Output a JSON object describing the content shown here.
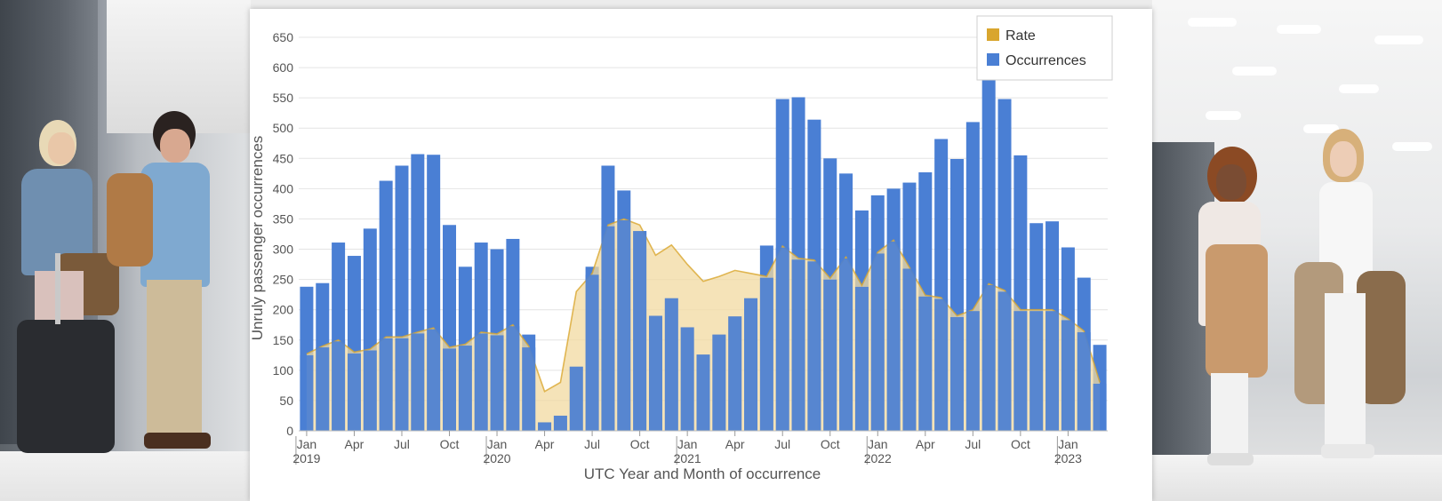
{
  "chart_data": {
    "type": "bar",
    "title": "",
    "xlabel": "UTC Year and Month of occurrence",
    "ylabel": "Unruly passenger occurrences",
    "ylim": [
      0,
      650
    ],
    "yticks": [
      0,
      50,
      100,
      150,
      200,
      250,
      300,
      350,
      400,
      450,
      500,
      550,
      600,
      650
    ],
    "grid": "horizontal",
    "legend_position": "top-right",
    "x_tick_labels": [
      {
        "index": 0,
        "month": "Jan",
        "year": "2019"
      },
      {
        "index": 3,
        "month": "Apr",
        "year": ""
      },
      {
        "index": 6,
        "month": "Jul",
        "year": ""
      },
      {
        "index": 9,
        "month": "Oct",
        "year": ""
      },
      {
        "index": 12,
        "month": "Jan",
        "year": "2020"
      },
      {
        "index": 15,
        "month": "Apr",
        "year": ""
      },
      {
        "index": 18,
        "month": "Jul",
        "year": ""
      },
      {
        "index": 21,
        "month": "Oct",
        "year": ""
      },
      {
        "index": 24,
        "month": "Jan",
        "year": "2021"
      },
      {
        "index": 27,
        "month": "Apr",
        "year": ""
      },
      {
        "index": 30,
        "month": "Jul",
        "year": ""
      },
      {
        "index": 33,
        "month": "Oct",
        "year": ""
      },
      {
        "index": 36,
        "month": "Jan",
        "year": "2022"
      },
      {
        "index": 39,
        "month": "Apr",
        "year": ""
      },
      {
        "index": 42,
        "month": "Jul",
        "year": ""
      },
      {
        "index": 45,
        "month": "Oct",
        "year": ""
      },
      {
        "index": 48,
        "month": "Jan",
        "year": "2023"
      }
    ],
    "series": [
      {
        "name": "Occurrences",
        "type": "bar",
        "color": "#4a7fd4",
        "values": [
          238,
          244,
          311,
          289,
          334,
          413,
          438,
          457,
          456,
          340,
          271,
          311,
          300,
          317,
          159,
          14,
          25,
          106,
          271,
          438,
          397,
          330,
          190,
          219,
          171,
          126,
          159,
          189,
          219,
          306,
          548,
          551,
          514,
          450,
          425,
          364,
          389,
          400,
          410,
          427,
          482,
          449,
          510,
          602,
          548,
          455,
          343,
          346,
          303,
          253,
          142
        ]
      },
      {
        "name": "Rate",
        "type": "area",
        "color": "#d9a62e",
        "fill": "#f1d9a0",
        "values": [
          127,
          140,
          150,
          130,
          135,
          155,
          155,
          163,
          170,
          138,
          143,
          163,
          160,
          175,
          140,
          65,
          80,
          230,
          260,
          340,
          350,
          340,
          290,
          307,
          275,
          247,
          255,
          265,
          260,
          255,
          305,
          285,
          282,
          252,
          287,
          240,
          295,
          315,
          270,
          224,
          220,
          190,
          200,
          243,
          232,
          200,
          200,
          200,
          185,
          165,
          80
        ]
      }
    ]
  }
}
